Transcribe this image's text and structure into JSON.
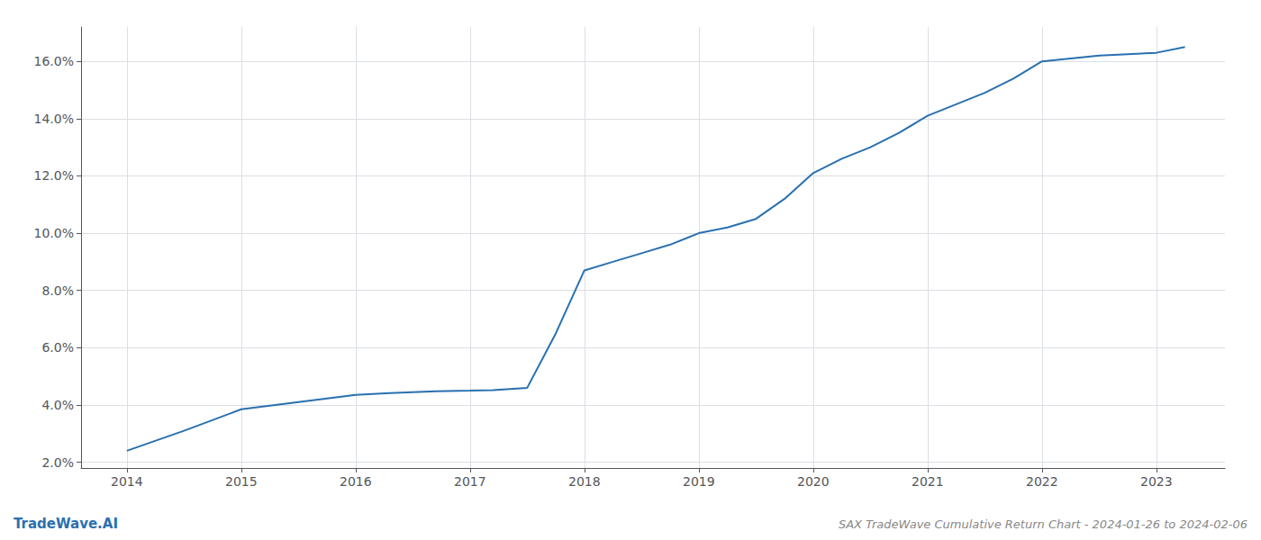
{
  "chart_data": {
    "type": "line",
    "title": "SAX TradeWave Cumulative Return Chart - 2024-01-26 to 2024-02-06",
    "annotations": [
      "TradeWave.AI"
    ],
    "x": [
      2014.0,
      2014.5,
      2015.0,
      2015.5,
      2016.0,
      2016.3,
      2016.7,
      2017.0,
      2017.2,
      2017.5,
      2017.75,
      2018.0,
      2018.25,
      2018.5,
      2018.75,
      2019.0,
      2019.25,
      2019.5,
      2019.75,
      2020.0,
      2020.25,
      2020.5,
      2020.75,
      2021.0,
      2021.25,
      2021.5,
      2021.75,
      2022.0,
      2022.25,
      2022.5,
      2022.75,
      2023.0,
      2023.25
    ],
    "values": [
      2.4,
      3.1,
      3.85,
      4.1,
      4.35,
      4.42,
      4.48,
      4.5,
      4.52,
      4.6,
      6.5,
      8.7,
      9.0,
      9.3,
      9.6,
      10.0,
      10.2,
      10.5,
      11.2,
      12.1,
      12.6,
      13.0,
      13.5,
      14.1,
      14.5,
      14.9,
      15.4,
      16.0,
      16.1,
      16.2,
      16.25,
      16.3,
      16.5
    ],
    "color": "#2970b0",
    "xlim": [
      2013.6,
      2023.6
    ],
    "ylim": [
      1.8,
      17.2
    ],
    "xticks": [
      2014,
      2015,
      2016,
      2017,
      2018,
      2019,
      2020,
      2021,
      2022,
      2023
    ],
    "yticks": [
      {
        "value": 2.0,
        "label": "2.0%"
      },
      {
        "value": 4.0,
        "label": "4.0%"
      },
      {
        "value": 6.0,
        "label": "6.0%"
      },
      {
        "value": 8.0,
        "label": "8.0%"
      },
      {
        "value": 10.0,
        "label": "10.0%"
      },
      {
        "value": 12.0,
        "label": "12.0%"
      },
      {
        "value": 14.0,
        "label": "14.0%"
      },
      {
        "value": 16.0,
        "label": "16.0%"
      }
    ],
    "grid": true
  }
}
